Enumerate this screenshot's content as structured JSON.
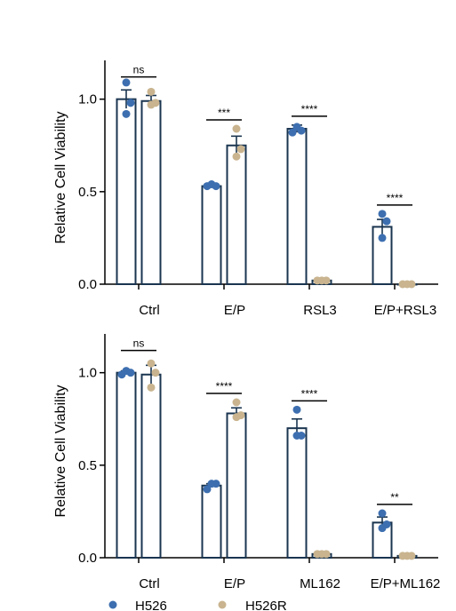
{
  "legend": {
    "items": [
      {
        "label": "H526",
        "color": "#3d6fb0"
      },
      {
        "label": "H526R",
        "color": "#c9b48f"
      }
    ]
  },
  "colors": {
    "bar_outline": "#1a3550",
    "h526": "#3d6fb0",
    "h526r": "#c9b48f",
    "axis": "#000000"
  },
  "chart_data": [
    {
      "type": "bar",
      "ylabel": "Relative Cell Viability",
      "ylim": [
        0,
        1.2
      ],
      "yticks": [
        0.0,
        0.5,
        1.0
      ],
      "ytick_labels": [
        "0.0",
        "0.5",
        "1.0"
      ],
      "categories": [
        "Ctrl",
        "E/P",
        "RSL3",
        "E/P+RSL3"
      ],
      "series": [
        {
          "name": "H526",
          "values": [
            1.0,
            0.53,
            0.84,
            0.31
          ],
          "sem": [
            0.05,
            0.01,
            0.02,
            0.04
          ],
          "points": [
            [
              1.09,
              0.92,
              0.98
            ],
            [
              0.53,
              0.54,
              0.53
            ],
            [
              0.82,
              0.85,
              0.83
            ],
            [
              0.38,
              0.25,
              0.34
            ]
          ]
        },
        {
          "name": "H526R",
          "values": [
            0.99,
            0.75,
            0.02,
            0.0
          ],
          "sem": [
            0.03,
            0.05,
            0.005,
            0.003
          ],
          "points": [
            [
              1.04,
              0.97,
              0.98
            ],
            [
              0.84,
              0.69,
              0.73
            ],
            [
              0.02,
              0.02,
              0.02
            ],
            [
              0.0,
              0.0,
              0.0
            ]
          ]
        }
      ],
      "significance": [
        "ns",
        "***",
        "****",
        "****"
      ]
    },
    {
      "type": "bar",
      "ylabel": "Relative Cell Viability",
      "ylim": [
        0,
        1.2
      ],
      "yticks": [
        0.0,
        0.5,
        1.0
      ],
      "ytick_labels": [
        "0.0",
        "0.5",
        "1.0"
      ],
      "categories": [
        "Ctrl",
        "E/P",
        "ML162",
        "E/P+ML162"
      ],
      "series": [
        {
          "name": "H526",
          "values": [
            1.0,
            0.39,
            0.7,
            0.19
          ],
          "sem": [
            0.01,
            0.01,
            0.05,
            0.03
          ],
          "points": [
            [
              0.99,
              1.01,
              1.0
            ],
            [
              0.37,
              0.4,
              0.4
            ],
            [
              0.8,
              0.66,
              0.66
            ],
            [
              0.24,
              0.16,
              0.18
            ]
          ]
        },
        {
          "name": "H526R",
          "values": [
            0.99,
            0.78,
            0.02,
            0.01
          ],
          "sem": [
            0.05,
            0.03,
            0.005,
            0.003
          ],
          "points": [
            [
              1.05,
              0.92,
              1.0
            ],
            [
              0.84,
              0.76,
              0.77
            ],
            [
              0.02,
              0.02,
              0.02
            ],
            [
              0.01,
              0.01,
              0.01
            ]
          ]
        }
      ],
      "significance": [
        "ns",
        "****",
        "****",
        "**"
      ]
    }
  ]
}
